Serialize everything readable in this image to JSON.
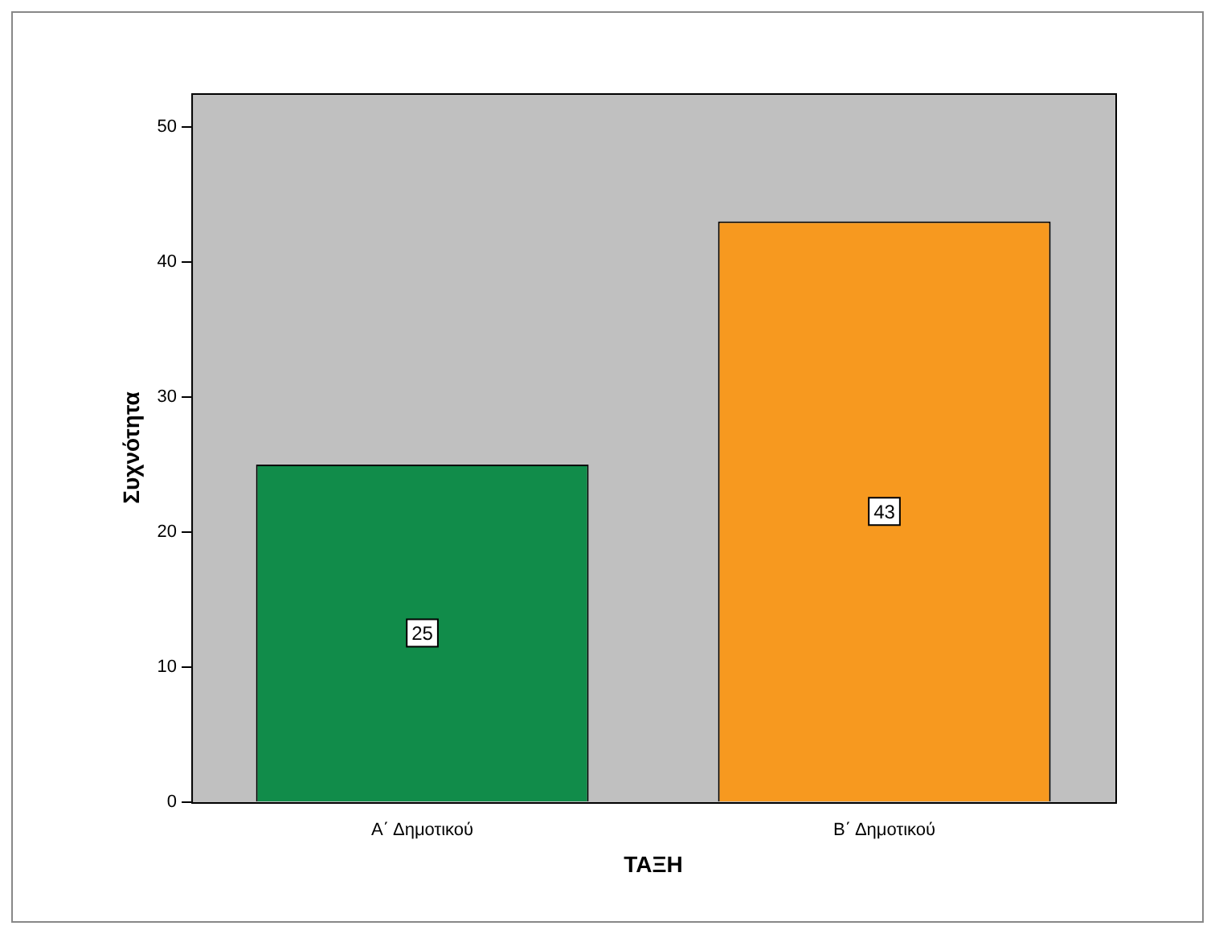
{
  "chart_data": {
    "type": "bar",
    "xlabel": "ΤΑΞΗ",
    "ylabel": "Συχνότητα",
    "categories": [
      "Α΄ Δημοτικού",
      "Β΄ Δημοτικού"
    ],
    "values": [
      25,
      43
    ],
    "colors": [
      "#118c4a",
      "#f7991f"
    ],
    "ylim": [
      0,
      52.5
    ],
    "yticks": [
      0,
      10,
      20,
      30,
      40,
      50
    ],
    "grid": false,
    "legend": false,
    "data_labels": true
  }
}
